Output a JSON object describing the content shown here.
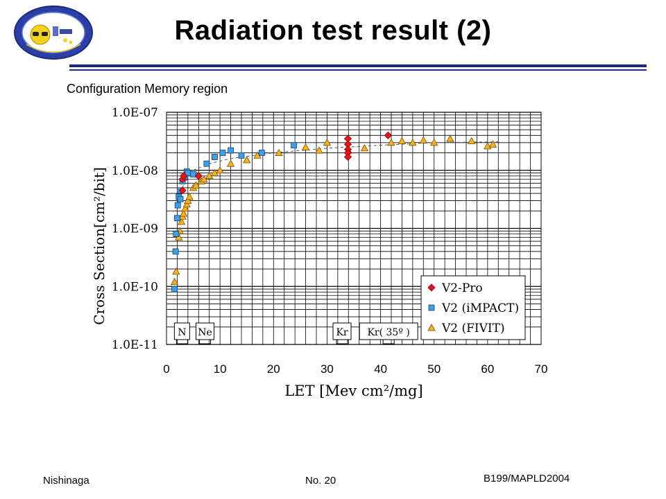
{
  "header": {
    "title": "Radiation test result (2)",
    "subtitle": "Configuration Memory region"
  },
  "footer": {
    "author": "Nishinaga",
    "page": "No. 20",
    "ref": "B199/MAPLD2004"
  },
  "colors": {
    "accent": "#1a2a7c",
    "v2pro": "#e8141c",
    "impact": "#3aa0e8",
    "fivit": "#f7b21e"
  },
  "chart_data": {
    "type": "scatter",
    "xlabel": "LET [Mev cm²/mg]",
    "ylabel": "Cross Section[cm²/bit]",
    "xlim": [
      0,
      70
    ],
    "ylim": [
      1e-11,
      1e-07
    ],
    "yscale": "log",
    "x_ticks": [
      0,
      10,
      20,
      30,
      40,
      50,
      60,
      70
    ],
    "y_ticks": [
      "1.0E-11",
      "1.0E-10",
      "1.0E-09",
      "1.0E-08",
      "1.0E-07"
    ],
    "grid": true,
    "legend": "bottom-right",
    "series": [
      {
        "name": "V2-Pro",
        "marker": "diamond",
        "x": [
          3.0,
          3.0,
          3.2,
          6.0,
          33.9,
          33.9,
          33.9,
          33.9,
          33.9,
          41.4
        ],
        "y": [
          4.5e-09,
          7e-09,
          8e-09,
          8e-09,
          3.5e-08,
          2.8e-08,
          2.3e-08,
          2e-08,
          1.7e-08,
          4e-08
        ]
      },
      {
        "name": "V2 (iMPACT)",
        "marker": "square",
        "x": [
          1.5,
          1.7,
          1.8,
          2.0,
          2.1,
          2.3,
          2.5,
          2.6,
          3.0,
          3.3,
          3.8,
          4.0,
          5.0,
          7.5,
          9.0,
          10.5,
          12.0,
          14.0,
          17.8,
          23.8
        ],
        "y": [
          9e-11,
          4e-10,
          8e-10,
          1.5e-09,
          2.5e-09,
          3.5e-09,
          4.5e-09,
          3.2e-09,
          6.5e-09,
          7.5e-09,
          9.5e-09,
          9e-09,
          8.5e-09,
          1.3e-08,
          1.7e-08,
          2e-08,
          2.2e-08,
          1.8e-08,
          2e-08,
          2.7e-08
        ]
      },
      {
        "name": "V2 (FIVIT)",
        "marker": "triangle",
        "x": [
          1.5,
          1.8,
          2.3,
          2.5,
          2.8,
          3.0,
          3.2,
          3.5,
          3.8,
          4.0,
          4.3,
          5.0,
          5.5,
          6.5,
          7.0,
          8.0,
          9.0,
          10.0,
          12.0,
          15.0,
          17.0,
          21.0,
          26.0,
          28.5,
          30.0,
          34.0,
          37.0,
          42.0,
          44.0,
          46.0,
          48.0,
          50.0,
          53.0,
          57.0,
          60.0,
          61.0
        ],
        "y": [
          1.2e-10,
          1.8e-10,
          7e-10,
          9e-10,
          1.3e-09,
          1.6e-09,
          1.8e-09,
          2.2e-09,
          2.6e-09,
          3e-09,
          3.5e-09,
          5e-09,
          5.5e-09,
          6.5e-09,
          7e-09,
          8e-09,
          9e-09,
          1e-08,
          1.3e-08,
          1.5e-08,
          1.8e-08,
          2e-08,
          2.5e-08,
          2.2e-08,
          3e-08,
          2.2e-08,
          2.4e-08,
          3e-08,
          3.2e-08,
          3e-08,
          3.3e-08,
          3e-08,
          3.5e-08,
          3.2e-08,
          2.6e-08,
          2.8e-08
        ]
      }
    ],
    "annotations": [
      {
        "text": "N",
        "x": 2.9
      },
      {
        "text": "Ne",
        "x": 7.2
      },
      {
        "text": "Kr",
        "x": 32.8
      },
      {
        "text": "Kr( 35º )",
        "x": 41.5
      }
    ]
  }
}
